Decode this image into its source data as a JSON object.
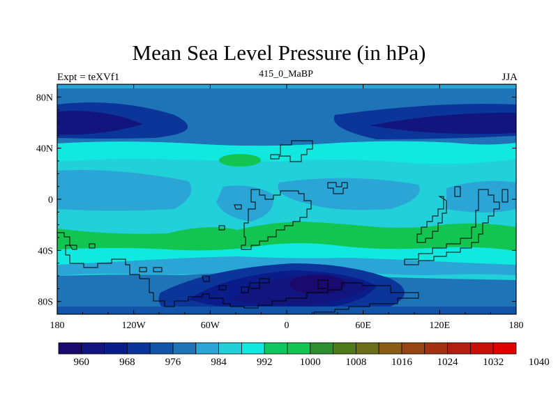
{
  "title": "Mean Sea Level Pressure (in hPa)",
  "left_subtitle": "Expt = teXVf1",
  "center_subtitle": "415_0_MaBP",
  "right_subtitle": "JJA",
  "map": {
    "projection": "cylindrical equidistant",
    "lon_range": [
      -180,
      180
    ],
    "lat_range": [
      -90,
      90
    ],
    "x_ticks": [
      {
        "value": -180,
        "label": "180"
      },
      {
        "value": -120,
        "label": "120W"
      },
      {
        "value": -60,
        "label": "60W"
      },
      {
        "value": 0,
        "label": "0"
      },
      {
        "value": 60,
        "label": "60E"
      },
      {
        "value": 120,
        "label": "120E"
      },
      {
        "value": 180,
        "label": "180"
      }
    ],
    "y_ticks": [
      {
        "value": 80,
        "label": "80N"
      },
      {
        "value": 40,
        "label": "40N"
      },
      {
        "value": 0,
        "label": "0"
      },
      {
        "value": -40,
        "label": "40S"
      },
      {
        "value": -80,
        "label": "80S"
      }
    ]
  },
  "colorbar": {
    "levels_labeled": [
      "960",
      "968",
      "976",
      "984",
      "992",
      "1000",
      "1008",
      "1016",
      "1024",
      "1032",
      "1040"
    ],
    "colors": [
      "#1a0a6e",
      "#12157e",
      "#0a1c8a",
      "#0b3598",
      "#1254a8",
      "#1f74b8",
      "#2ba5d6",
      "#21d0d8",
      "#10e8e0",
      "#0fc760",
      "#12c550",
      "#2d8f2e",
      "#4e7a1a",
      "#6b6d18",
      "#8a5c16",
      "#984514",
      "#a33212",
      "#b21e10",
      "#c81008",
      "#e00000"
    ]
  }
}
